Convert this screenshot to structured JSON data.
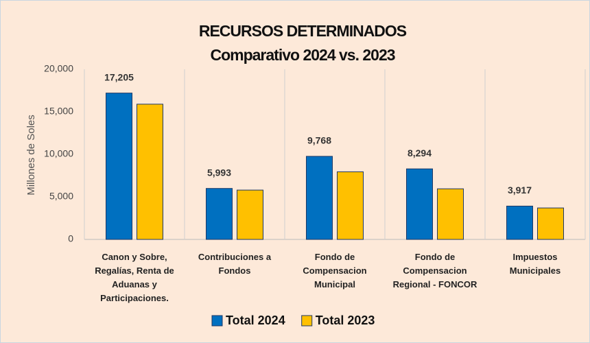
{
  "chart_data": {
    "type": "bar",
    "title": "RECURSOS DETERMINADOS",
    "subtitle": "Comparativo 2024 vs. 2023",
    "y_label": "Millones de Soles",
    "categories": [
      "Canon y Sobre, Regalías, Renta de Aduanas y Participaciones.",
      "Contribuciones a Fondos",
      "Fondo de Compensacion Municipal",
      "Fondo de Compensacion Regional - FONCOR",
      "Impuestos Municipales"
    ],
    "series": [
      {
        "name": "Total 2024",
        "color": "#0070c0",
        "values": [
          17205,
          5993,
          9768,
          8294,
          3917
        ],
        "value_labels": [
          "17,205",
          "5,993",
          "9,768",
          "8,294",
          "3,917"
        ]
      },
      {
        "name": "Total 2023",
        "color": "#ffc000",
        "values": [
          15900,
          5800,
          7950,
          5950,
          3700
        ]
      }
    ],
    "ylim": [
      0,
      20000
    ],
    "yticks": [
      0,
      {
        "value": 5000,
        "label": "5,000"
      },
      {
        "value": 10000,
        "label": "10,000"
      },
      {
        "value": 15000,
        "label": "15,000"
      },
      {
        "value": 20000,
        "label": "20,000"
      }
    ],
    "legend": "bottom"
  }
}
